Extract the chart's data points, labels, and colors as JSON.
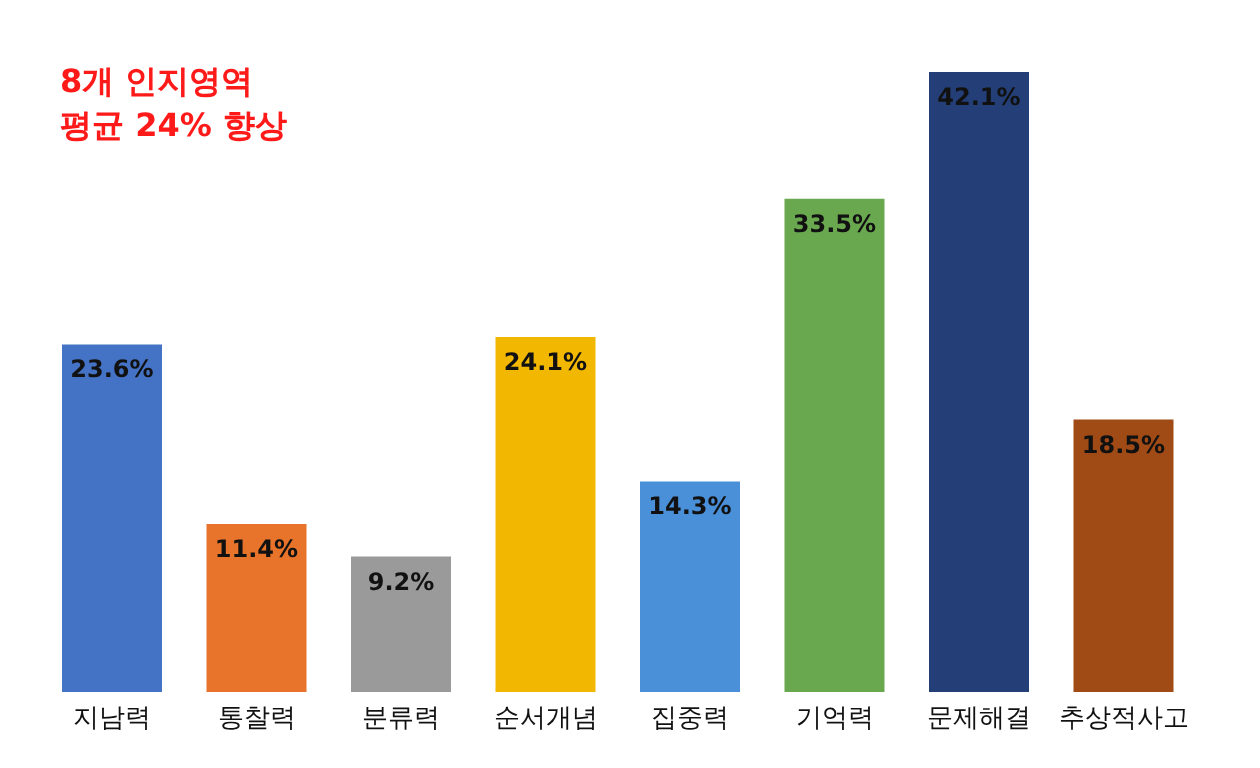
{
  "chart_data": {
    "type": "bar",
    "title": "8개 인지영역",
    "subtitle": "평균 24% 향상",
    "categories": [
      "지남력",
      "통찰력",
      "분류력",
      "순서개념",
      "집중력",
      "기억력",
      "문제해결",
      "추상적사고"
    ],
    "values": [
      23.6,
      11.4,
      9.2,
      24.1,
      14.3,
      33.5,
      42.1,
      18.5
    ],
    "colors": [
      "#4472c4",
      "#e8732a",
      "#9a9a9a",
      "#f2b700",
      "#4a90d9",
      "#6aa84f",
      "#243f78",
      "#a04a15"
    ],
    "value_labels": [
      "23.6%",
      "11.4%",
      "9.2%",
      "24.1%",
      "14.3%",
      "33.5%",
      "42.1%",
      "18.5%"
    ],
    "legend": false,
    "grid": false
  }
}
